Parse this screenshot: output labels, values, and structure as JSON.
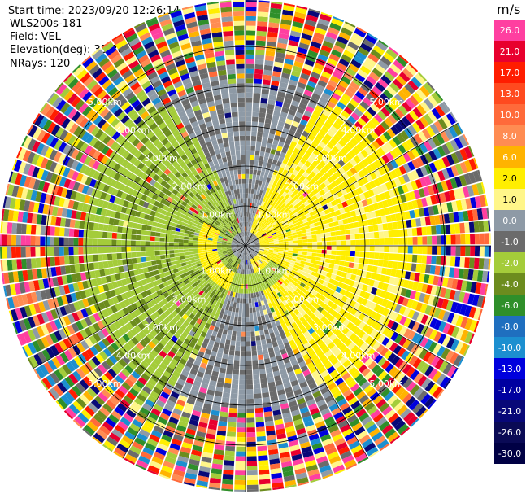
{
  "header": {
    "start_time": "Start time: 2023/09/20 12:26:14",
    "instrument": "WLS200s-181",
    "field": "Field: VEL",
    "elevation": "Elevation(deg): 35.30",
    "nrays": "NRays: 120"
  },
  "colorbar": {
    "unit": "m/s",
    "ticks": [
      "26.0",
      "21.0",
      "17.0",
      "13.0",
      "10.0",
      "8.0",
      "6.0",
      "2.0",
      "1.0",
      "0.0",
      "-1.0",
      "-2.0",
      "-4.0",
      "-6.0",
      "-8.0",
      "-10.0",
      "-13.0",
      "-17.0",
      "-21.0",
      "-26.0",
      "-30.0"
    ],
    "colors": [
      "#ff3fa0",
      "#e8002e",
      "#ff1d00",
      "#ff4a1f",
      "#ff6a3a",
      "#ff8c52",
      "#ffb300",
      "#ffee00",
      "#fff689",
      "#8e9aa6",
      "#6b6b6b",
      "#a4cc3a",
      "#6c8c1e",
      "#2f8f2a",
      "#1f6fbf",
      "#1c8fd0",
      "#0000dd",
      "#0000a0",
      "#080878",
      "#0a0a55",
      "#000044"
    ]
  },
  "chart_data": {
    "type": "heatmap",
    "projection": "polar PPI",
    "field": "VEL",
    "units": "m/s",
    "color_range": [
      -30.0,
      26.0
    ],
    "nrays": 120,
    "elevation_deg": 35.3,
    "range_rings_km": [
      1.0,
      2.0,
      3.0,
      4.0,
      5.0
    ],
    "range_ring_labels": [
      "1.00km",
      "2.00km",
      "3.00km",
      "4.00km",
      "5.00km"
    ],
    "max_range_km": 6.4,
    "spokes_deg": [
      0,
      30,
      60,
      90,
      120,
      150,
      180,
      210,
      240,
      270,
      300,
      330
    ],
    "pattern": "yellow positive velocities east of site, green negative velocities west of site, grey near-zero band north-south, noisy multicolor returns beyond ~4.5 km"
  }
}
